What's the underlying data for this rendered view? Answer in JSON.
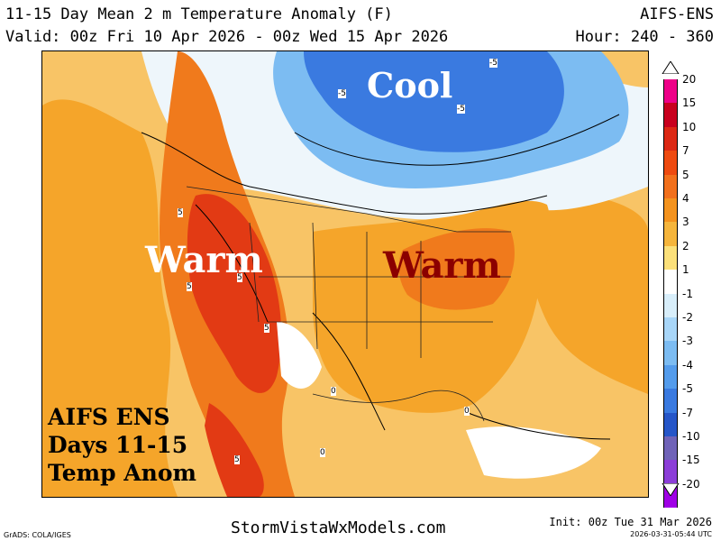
{
  "header": {
    "title": "11-15 Day Mean 2 m Temperature Anomaly (F)",
    "model": "AIFS-ENS",
    "valid": "Valid: 00z Fri 10 Apr 2026 - 00z Wed 15 Apr 2026",
    "hour": "Hour: 240 - 360"
  },
  "map_labels": {
    "cool": "Cool",
    "warm_west": "Warm",
    "warm_east": "Warm",
    "contour_labels": [
      "-5",
      "-5",
      "-5",
      "5",
      "5",
      "5",
      "5",
      "5",
      "0",
      "0",
      "0"
    ]
  },
  "overlay_text": {
    "line1": "AIFS ENS",
    "line2": "Days 11-15",
    "line3": "Temp Anom"
  },
  "legend": {
    "labels": [
      "20",
      "15",
      "10",
      "7",
      "5",
      "4",
      "3",
      "2",
      "1",
      "-1",
      "-2",
      "-3",
      "-4",
      "-5",
      "-7",
      "-10",
      "-15",
      "-20"
    ],
    "colors": [
      "#ee0088",
      "#c8001e",
      "#dc2814",
      "#ee4a10",
      "#f2701c",
      "#f4931e",
      "#f5b53c",
      "#fbe07a",
      "#ffffff",
      "#d8eefa",
      "#a8d6f8",
      "#7cbcf2",
      "#549cec",
      "#3a7ae0",
      "#2656c8",
      "#7063b8",
      "#8c3ed8",
      "#a000e6"
    ]
  },
  "footer": {
    "grads": "GrADS: COLA/IGES",
    "site": "StormVistaWxModels.com",
    "init": "Init: 00z Tue 31 Mar 2026",
    "stamp": "2026-03-31-05:44 UTC"
  },
  "colors": {
    "orange_light": "#f8c466",
    "orange": "#f5a52a",
    "orange_dark": "#f07a1c",
    "red": "#e23a14",
    "blue": "#2f6ee0",
    "blue_light": "#a8d6f8",
    "cool_text": "#ffffff",
    "warm_text_west": "#ffffff",
    "warm_text_east": "#8b0000"
  }
}
